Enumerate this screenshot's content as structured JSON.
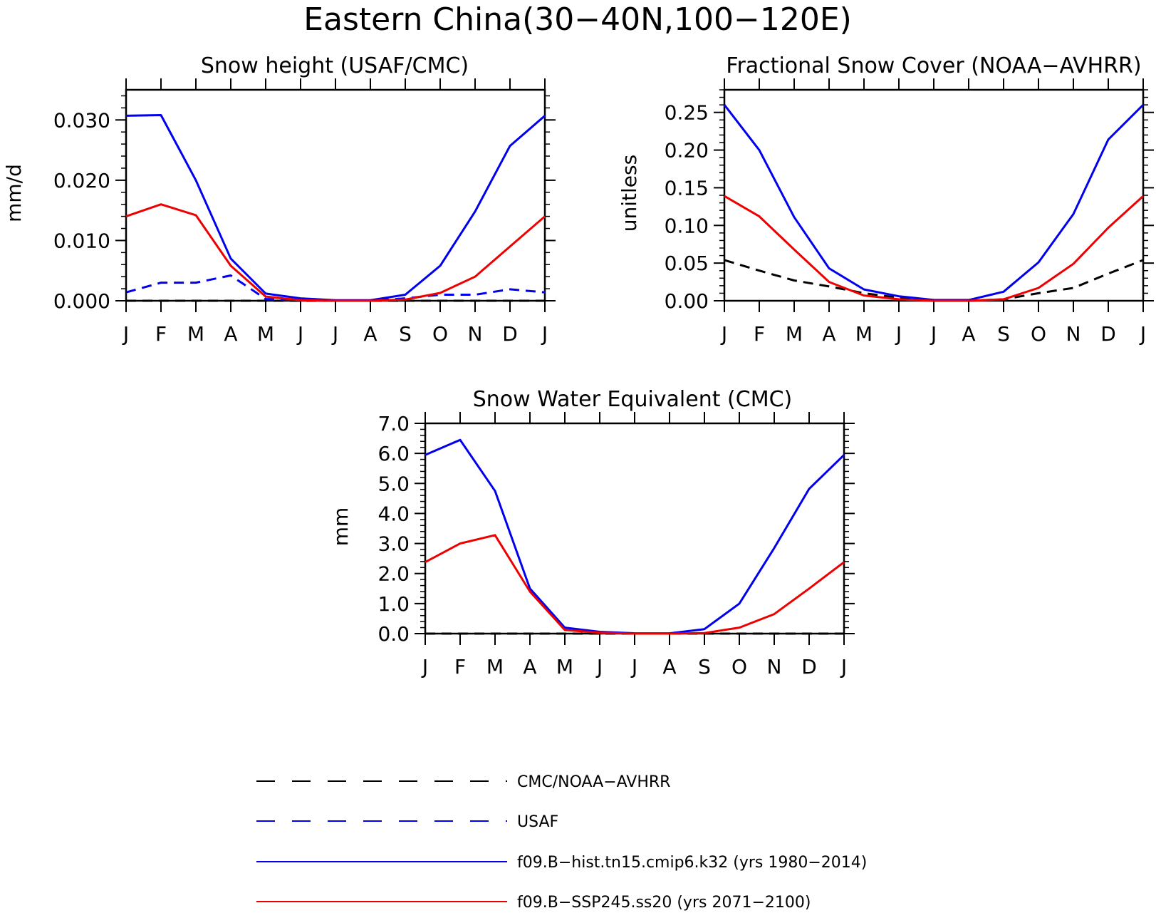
{
  "figure": {
    "title": "Eastern China(30−40N,100−120E)"
  },
  "colors": {
    "obs": "#000000",
    "usaf": "#0000ee",
    "hist": "#0000ee",
    "ssp": "#ee0000"
  },
  "chart_data": [
    {
      "type": "line",
      "title": "Snow height (USAF/CMC)",
      "xlabel": "",
      "ylabel": "mm/d",
      "x": [
        "J",
        "F",
        "M",
        "A",
        "M",
        "J",
        "J",
        "A",
        "S",
        "O",
        "N",
        "D",
        "J"
      ],
      "ylim": [
        0,
        0.035
      ],
      "yticks": [
        0.0,
        0.01,
        0.02,
        0.03
      ],
      "ytick_labels": [
        "0.000",
        "0.010",
        "0.020",
        "0.030"
      ],
      "series": [
        {
          "key": "obs",
          "dashed": true,
          "values": [
            0,
            0,
            0,
            0,
            0,
            0,
            0,
            0,
            0,
            0,
            0,
            0,
            0
          ]
        },
        {
          "key": "usaf",
          "dashed": true,
          "values": [
            0.0014,
            0.003,
            0.003,
            0.0042,
            0.0003,
            0.0001,
            0.0,
            0.0,
            0.0004,
            0.001,
            0.001,
            0.0019,
            0.0014
          ]
        },
        {
          "key": "hist",
          "dashed": false,
          "values": [
            0.0307,
            0.0308,
            0.02,
            0.007,
            0.0012,
            0.0004,
            0.0001,
            0.0001,
            0.001,
            0.0058,
            0.0148,
            0.0257,
            0.0307
          ]
        },
        {
          "key": "ssp",
          "dashed": false,
          "values": [
            0.014,
            0.016,
            0.0142,
            0.0058,
            0.0007,
            0.0001,
            0.0,
            0.0,
            0.0002,
            0.0013,
            0.004,
            0.009,
            0.014
          ]
        }
      ]
    },
    {
      "type": "line",
      "title": "Fractional Snow Cover (NOAA−AVHRR)",
      "xlabel": "",
      "ylabel": "unitless",
      "x": [
        "J",
        "F",
        "M",
        "A",
        "M",
        "J",
        "J",
        "A",
        "S",
        "O",
        "N",
        "D",
        "J"
      ],
      "ylim": [
        0,
        0.28
      ],
      "yticks": [
        0.0,
        0.05,
        0.1,
        0.15,
        0.2,
        0.25
      ],
      "ytick_labels": [
        "0.00",
        "0.05",
        "0.10",
        "0.15",
        "0.20",
        "0.25"
      ],
      "series": [
        {
          "key": "obs",
          "dashed": true,
          "values": [
            0.054,
            0.04,
            0.027,
            0.019,
            0.01,
            0.004,
            0.001,
            0.0,
            0.002,
            0.01,
            0.017,
            0.036,
            0.054
          ]
        },
        {
          "key": "hist",
          "dashed": false,
          "values": [
            0.26,
            0.2,
            0.111,
            0.043,
            0.015,
            0.006,
            0.001,
            0.001,
            0.012,
            0.051,
            0.115,
            0.214,
            0.26
          ]
        },
        {
          "key": "ssp",
          "dashed": false,
          "values": [
            0.139,
            0.112,
            0.068,
            0.025,
            0.007,
            0.002,
            0.0,
            0.0,
            0.002,
            0.017,
            0.049,
            0.097,
            0.139
          ]
        }
      ]
    },
    {
      "type": "line",
      "title": "Snow Water Equivalent (CMC)",
      "xlabel": "",
      "ylabel": "mm",
      "x": [
        "J",
        "F",
        "M",
        "A",
        "M",
        "J",
        "J",
        "A",
        "S",
        "O",
        "N",
        "D",
        "J"
      ],
      "ylim": [
        0,
        7.0
      ],
      "yticks": [
        0.0,
        1.0,
        2.0,
        3.0,
        4.0,
        5.0,
        6.0,
        7.0
      ],
      "ytick_labels": [
        "0.0",
        "1.0",
        "2.0",
        "3.0",
        "4.0",
        "5.0",
        "6.0",
        "7.0"
      ],
      "series": [
        {
          "key": "obs",
          "dashed": true,
          "values": [
            0,
            0,
            0,
            0,
            0,
            0,
            0,
            0,
            0,
            0,
            0,
            0,
            0
          ]
        },
        {
          "key": "hist",
          "dashed": false,
          "values": [
            5.95,
            6.45,
            4.75,
            1.5,
            0.2,
            0.06,
            0.01,
            0.01,
            0.15,
            1.0,
            2.85,
            4.82,
            5.95
          ]
        },
        {
          "key": "ssp",
          "dashed": false,
          "values": [
            2.38,
            3.0,
            3.28,
            1.4,
            0.12,
            0.03,
            0.0,
            0.0,
            0.02,
            0.2,
            0.65,
            1.5,
            2.38
          ]
        }
      ]
    }
  ],
  "legend": [
    {
      "key": "obs",
      "dashed": true,
      "label": "CMC/NOAA−AVHRR"
    },
    {
      "key": "usaf",
      "dashed": true,
      "label": "USAF"
    },
    {
      "key": "hist",
      "dashed": false,
      "label": "f09.B−hist.tn15.cmip6.k32 (yrs 1980−2014)"
    },
    {
      "key": "ssp",
      "dashed": false,
      "label": "f09.B−SSP245.ss20 (yrs 2071−2100)"
    }
  ]
}
